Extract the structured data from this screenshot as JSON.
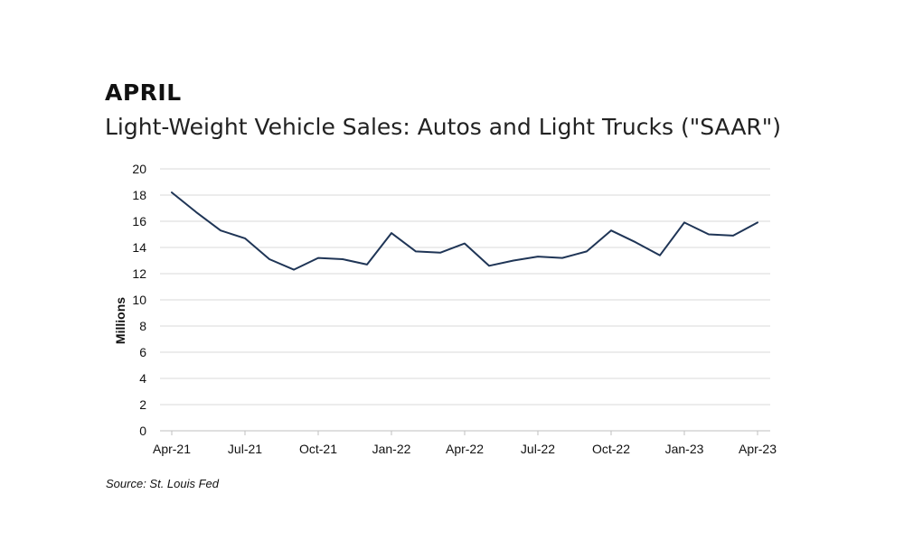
{
  "heading": "APRIL",
  "source": "Source: St. Louis Fed",
  "chart_data": {
    "type": "line",
    "title": "Light-Weight Vehicle Sales: Autos and Light Trucks (\"SAAR\")",
    "xlabel": "",
    "ylabel": "Millions",
    "ylim": [
      0,
      20
    ],
    "yticks": [
      0,
      2,
      4,
      6,
      8,
      10,
      12,
      14,
      16,
      18,
      20
    ],
    "xtick_labels": [
      "Apr-21",
      "Jul-21",
      "Oct-21",
      "Jan-22",
      "Apr-22",
      "Jul-22",
      "Oct-22",
      "Jan-23",
      "Apr-23"
    ],
    "grid": true,
    "line_color": "#1f3556",
    "categories": [
      "Apr-21",
      "May-21",
      "Jun-21",
      "Jul-21",
      "Aug-21",
      "Sep-21",
      "Oct-21",
      "Nov-21",
      "Dec-21",
      "Jan-22",
      "Feb-22",
      "Mar-22",
      "Apr-22",
      "May-22",
      "Jun-22",
      "Jul-22",
      "Aug-22",
      "Sep-22",
      "Oct-22",
      "Nov-22",
      "Dec-22",
      "Jan-23",
      "Feb-23",
      "Mar-23",
      "Apr-23"
    ],
    "series": [
      {
        "values": [
          18.2,
          16.7,
          15.3,
          14.7,
          13.1,
          12.3,
          13.2,
          13.1,
          12.7,
          15.1,
          13.7,
          13.6,
          14.3,
          12.6,
          13.0,
          13.3,
          13.2,
          13.7,
          15.3,
          14.4,
          13.4,
          15.9,
          15.0,
          14.9,
          15.9
        ]
      }
    ]
  }
}
